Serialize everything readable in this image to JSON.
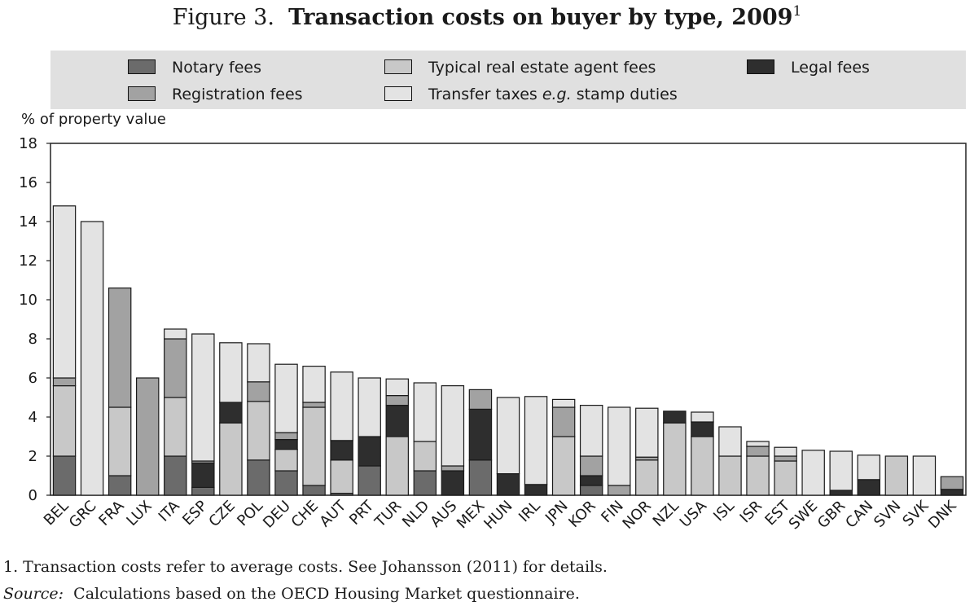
{
  "title": {
    "prefix": "Figure 3.",
    "main": "Transaction costs on buyer by type, 2009",
    "sup": "1"
  },
  "legend": {
    "notary": "Notary fees",
    "registration": "Registration fees",
    "agent": "Typical real estate agent fees",
    "transfer_pre": "Transfer taxes ",
    "transfer_em": "e.g.",
    "transfer_post": " stamp duties",
    "legal": "Legal fees"
  },
  "colors": {
    "notary": "#6b6b6b",
    "registration": "#a2a2a2",
    "agent": "#c8c8c8",
    "transfer": "#e3e3e3",
    "legal": "#2e2e2e"
  },
  "footnote": "1.  Transaction costs refer to average costs. See Johansson (2011) for details.",
  "source": {
    "label": "Source:",
    "text": "Calculations based on the OECD Housing Market questionnaire."
  },
  "chart_data": {
    "type": "bar",
    "stacked": true,
    "ylabel": "% of property value",
    "ylim": [
      0,
      18
    ],
    "yticks": [
      0,
      2,
      4,
      6,
      8,
      10,
      12,
      14,
      16,
      18
    ],
    "grid": false,
    "legend_position": "top",
    "categories": [
      "BEL",
      "GRC",
      "FRA",
      "LUX",
      "ITA",
      "ESP",
      "CZE",
      "POL",
      "DEU",
      "CHE",
      "AUT",
      "PRT",
      "TUR",
      "NLD",
      "AUS",
      "MEX",
      "HUN",
      "IRL",
      "JPN",
      "KOR",
      "FIN",
      "NOR",
      "NZL",
      "USA",
      "ISL",
      "ISR",
      "EST",
      "SWE",
      "GBR",
      "CAN",
      "SVN",
      "SVK",
      "DNK"
    ],
    "series": [
      {
        "name": "Notary fees",
        "key": "notary",
        "values": [
          2.0,
          0,
          1.0,
          0,
          2.0,
          0.4,
          0,
          1.8,
          1.25,
          0.5,
          0.1,
          1.5,
          0,
          1.25,
          0,
          1.8,
          0,
          0,
          0,
          0.5,
          0,
          0,
          0,
          0,
          0,
          0,
          0,
          0,
          0,
          0,
          0,
          0,
          0
        ]
      },
      {
        "name": "Legal fees",
        "key": "legal",
        "values": [
          0,
          0,
          0,
          0,
          0,
          1.25,
          0,
          0,
          0,
          0,
          0,
          0,
          0,
          0,
          1.25,
          0,
          1.1,
          0.55,
          0,
          0.5,
          0,
          0,
          0,
          0,
          0,
          0,
          0,
          0,
          0.25,
          0.8,
          0,
          0,
          0.3
        ]
      },
      {
        "name": "Typical real estate agent fees",
        "key": "agent",
        "values": [
          3.6,
          0,
          3.5,
          0,
          3.0,
          0,
          3.7,
          3.0,
          1.1,
          4.0,
          1.7,
          0,
          3.0,
          1.5,
          0,
          0,
          0,
          0,
          3.0,
          0,
          0,
          1.8,
          3.7,
          3.0,
          2.0,
          2.0,
          1.75,
          0,
          0,
          0,
          2.0,
          0,
          0
        ]
      },
      {
        "name": "Legal fees",
        "key": "legal",
        "values": [
          0,
          0,
          0,
          0,
          0,
          0,
          1.05,
          0,
          0.5,
          0,
          1.0,
          1.5,
          1.6,
          0,
          0,
          2.6,
          0,
          0,
          0,
          0,
          0,
          0,
          0.6,
          0.75,
          0,
          0,
          0,
          0,
          0,
          0,
          0,
          0,
          0
        ]
      },
      {
        "name": "Registration fees",
        "key": "registration",
        "values": [
          0.4,
          0,
          6.1,
          6.0,
          3.0,
          0.1,
          0,
          1.0,
          0.35,
          0.25,
          0,
          0,
          0.5,
          0,
          0.25,
          1.0,
          0,
          0,
          1.5,
          1.0,
          0.5,
          0.15,
          0,
          0,
          0,
          0.5,
          0.25,
          0,
          0,
          0,
          0,
          0,
          0.65
        ]
      },
      {
        "name": "Transfer taxes e.g. stamp duties",
        "key": "transfer",
        "values": [
          8.8,
          14.0,
          0,
          0,
          0.5,
          6.5,
          3.05,
          1.95,
          3.5,
          1.85,
          3.5,
          3.0,
          0.85,
          3.0,
          4.1,
          0,
          3.9,
          4.5,
          0.4,
          2.6,
          4.0,
          2.5,
          0,
          0.5,
          1.5,
          0.25,
          0.45,
          2.3,
          2.0,
          1.25,
          0,
          2.0,
          0
        ]
      }
    ]
  }
}
